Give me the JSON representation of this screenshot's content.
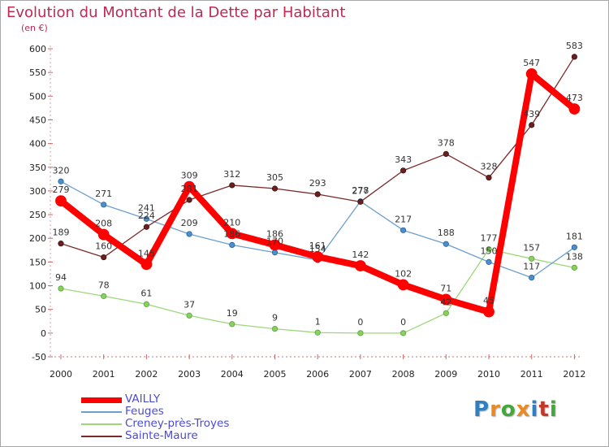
{
  "title": "Evolution du Montant de la Dette par Habitant",
  "subtitle": "(en €)",
  "logo": {
    "text": "Proxiti",
    "colors": [
      "#2f7fc1",
      "#e98b24",
      "#46a63c",
      "#e98b24",
      "#2f7fc1",
      "#c0392b",
      "#46a63c"
    ]
  },
  "chart_data": {
    "type": "line",
    "x": [
      "2000",
      "2001",
      "2002",
      "2003",
      "2004",
      "2005",
      "2006",
      "2007",
      "2008",
      "2009",
      "2010",
      "2011",
      "2012"
    ],
    "ylim": [
      -50,
      600
    ],
    "yticks": [
      -50,
      0,
      50,
      100,
      150,
      200,
      250,
      300,
      350,
      400,
      450,
      500,
      550,
      600
    ],
    "grid": false,
    "legend_position": "bottom-left",
    "series": [
      {
        "name": "VAILLY",
        "color": "#ff0000",
        "legend_color": "#4b4bd6",
        "values": [
          279,
          208,
          145,
          309,
          210,
          186,
          161,
          142,
          102,
          71,
          45,
          547,
          473
        ]
      },
      {
        "name": "Feuges",
        "color": "#6c9fd0",
        "legend_color": "#4b4bd6",
        "values": [
          320,
          271,
          241,
          209,
          186,
          170,
          154,
          278,
          217,
          188,
          150,
          117,
          181
        ]
      },
      {
        "name": "Creney-près-Troyes",
        "color": "#9cd87a",
        "legend_color": "#4b4bd6",
        "values": [
          94,
          78,
          61,
          37,
          19,
          9,
          1,
          0,
          0,
          42,
          177,
          157,
          138
        ]
      },
      {
        "name": "Sainte-Maure",
        "color": "#7b2a2a",
        "legend_color": "#4b4bd6",
        "values": [
          189,
          160,
          224,
          281,
          312,
          305,
          293,
          277,
          343,
          378,
          328,
          439,
          583
        ]
      }
    ],
    "labels": [
      [
        "279",
        "208",
        "145",
        "309",
        "210",
        "186",
        "161",
        "142",
        "102",
        "71",
        "45",
        "547",
        "473"
      ],
      [
        "320",
        "271",
        "241",
        "209",
        "186",
        "170",
        "154",
        "278",
        "217",
        "188",
        "150",
        "117",
        "181"
      ],
      [
        "94",
        "78",
        "61",
        "37",
        "19",
        "9",
        "1",
        "0",
        "0",
        "42",
        "177",
        "157",
        "138"
      ],
      [
        "189",
        "160",
        "224",
        "281",
        "312",
        "305",
        "293",
        "277",
        "343",
        "378",
        "328",
        "439",
        "583"
      ]
    ]
  }
}
